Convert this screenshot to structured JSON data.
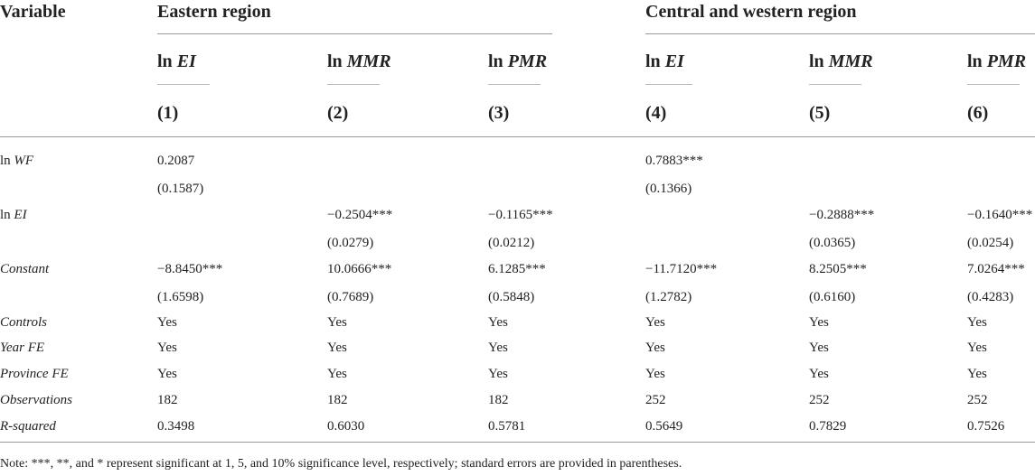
{
  "header": {
    "variable": "Variable",
    "group1": "Eastern region",
    "group2": "Central and western region"
  },
  "columns": [
    {
      "prefix": "ln ",
      "var": "EI",
      "num": "(1)"
    },
    {
      "prefix": "ln ",
      "var": "MMR",
      "num": "(2)"
    },
    {
      "prefix": "ln ",
      "var": "PMR",
      "num": "(3)"
    },
    {
      "prefix": "ln ",
      "var": "EI",
      "num": "(4)"
    },
    {
      "prefix": "ln ",
      "var": "MMR",
      "num": "(5)"
    },
    {
      "prefix": "ln ",
      "var": "PMR",
      "num": "(6)"
    }
  ],
  "rows": [
    {
      "label_prefix": "ln ",
      "label_var": "WF",
      "values": [
        "0.2087",
        "",
        "",
        "0.7883***",
        "",
        ""
      ]
    },
    {
      "label_prefix": "",
      "label_var": "",
      "values": [
        "(0.1587)",
        "",
        "",
        "(0.1366)",
        "",
        ""
      ]
    },
    {
      "label_prefix": "ln ",
      "label_var": "EI",
      "values": [
        "",
        "−0.2504***",
        "−0.1165***",
        "",
        "−0.2888***",
        "−0.1640***"
      ]
    },
    {
      "label_prefix": "",
      "label_var": "",
      "values": [
        "",
        "(0.0279)",
        "(0.0212)",
        "",
        "(0.0365)",
        "(0.0254)"
      ]
    },
    {
      "label_prefix": "",
      "label_var": "Constant",
      "values": [
        "−8.8450***",
        "10.0666***",
        "6.1285***",
        "−11.7120***",
        "8.2505***",
        "7.0264***"
      ]
    },
    {
      "label_prefix": "",
      "label_var": "",
      "values": [
        "(1.6598)",
        "(0.7689)",
        "(0.5848)",
        "(1.2782)",
        "(0.6160)",
        "(0.4283)"
      ]
    },
    {
      "label_prefix": "",
      "label_var": "Controls",
      "values": [
        "Yes",
        "Yes",
        "Yes",
        "Yes",
        "Yes",
        "Yes"
      ]
    },
    {
      "label_prefix": "",
      "label_var": "Year FE",
      "values": [
        "Yes",
        "Yes",
        "Yes",
        "Yes",
        "Yes",
        "Yes"
      ]
    },
    {
      "label_prefix": "",
      "label_var": "Province FE",
      "values": [
        "Yes",
        "Yes",
        "Yes",
        "Yes",
        "Yes",
        "Yes"
      ]
    },
    {
      "label_prefix": "",
      "label_var": "Observations",
      "values": [
        "182",
        "182",
        "182",
        "252",
        "252",
        "252"
      ]
    },
    {
      "label_prefix": "",
      "label_var": "R-squared",
      "values": [
        "0.3498",
        "0.6030",
        "0.5781",
        "0.5649",
        "0.7829",
        "0.7526"
      ]
    }
  ],
  "note": "Note: ***, **, and * represent significant at 1, 5, and 10% significance level, respectively; standard errors are provided in parentheses."
}
